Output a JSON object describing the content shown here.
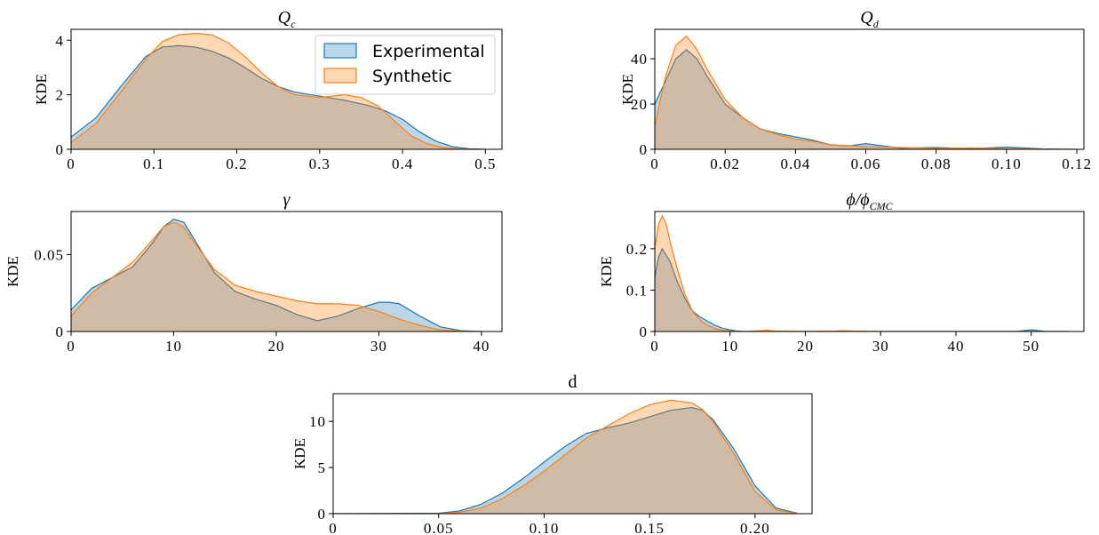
{
  "chart_data": [
    {
      "type": "area",
      "title_main": "Q",
      "title_sub": "c",
      "ylabel": "KDE",
      "xlim": [
        0,
        0.52
      ],
      "ylim": [
        0,
        4.4
      ],
      "xticks": [
        0,
        0.1,
        0.2,
        0.3,
        0.4,
        0.5
      ],
      "xtick_labels": [
        "0",
        "0.1",
        "0.2",
        "0.3",
        "0.4",
        "0.5"
      ],
      "yticks": [
        0,
        2,
        4
      ],
      "ytick_labels": [
        "0",
        "2",
        "4"
      ],
      "legend": {
        "position": "top-right",
        "entries": [
          "Experimental",
          "Synthetic"
        ]
      },
      "series": [
        {
          "name": "Experimental",
          "x": [
            0,
            0.03,
            0.06,
            0.09,
            0.11,
            0.13,
            0.15,
            0.17,
            0.19,
            0.21,
            0.23,
            0.25,
            0.27,
            0.3,
            0.33,
            0.36,
            0.38,
            0.4,
            0.42,
            0.44,
            0.46,
            0.48,
            0.5
          ],
          "values": [
            0.45,
            1.15,
            2.3,
            3.4,
            3.75,
            3.8,
            3.75,
            3.6,
            3.35,
            3.0,
            2.6,
            2.3,
            2.1,
            1.95,
            1.8,
            1.6,
            1.4,
            1.1,
            0.65,
            0.3,
            0.1,
            0.02,
            0
          ]
        },
        {
          "name": "Synthetic",
          "x": [
            0,
            0.03,
            0.06,
            0.09,
            0.11,
            0.13,
            0.15,
            0.17,
            0.19,
            0.21,
            0.23,
            0.25,
            0.27,
            0.3,
            0.33,
            0.35,
            0.37,
            0.39,
            0.41,
            0.43,
            0.45,
            0.47,
            0.49
          ],
          "values": [
            0.25,
            0.95,
            2.1,
            3.3,
            3.95,
            4.2,
            4.25,
            4.2,
            3.9,
            3.4,
            2.8,
            2.3,
            2.0,
            1.9,
            2.0,
            1.9,
            1.6,
            1.05,
            0.5,
            0.2,
            0.06,
            0.01,
            0
          ]
        }
      ]
    },
    {
      "type": "area",
      "title_main": "Q",
      "title_sub": "d",
      "ylabel": "KDE",
      "xlim": [
        0,
        0.122
      ],
      "ylim": [
        0,
        53
      ],
      "xticks": [
        0,
        0.02,
        0.04,
        0.06,
        0.08,
        0.1,
        0.12
      ],
      "xtick_labels": [
        "0",
        "0.02",
        "0.04",
        "0.06",
        "0.08",
        "0.10",
        "0.12"
      ],
      "yticks": [
        0,
        20,
        40
      ],
      "ytick_labels": [
        "0",
        "20",
        "40"
      ],
      "series": [
        {
          "name": "Experimental",
          "x": [
            0,
            0.003,
            0.006,
            0.009,
            0.012,
            0.015,
            0.02,
            0.025,
            0.03,
            0.035,
            0.04,
            0.045,
            0.05,
            0.055,
            0.06,
            0.065,
            0.07,
            0.08,
            0.09,
            0.1,
            0.105,
            0.11,
            0.115,
            0.12
          ],
          "values": [
            20,
            30,
            40,
            44,
            40,
            32,
            20,
            14,
            9,
            7,
            5.5,
            4,
            2,
            1.5,
            2.5,
            1.5,
            0.5,
            0.8,
            0.3,
            1.0,
            0.6,
            0.2,
            0.05,
            0
          ]
        },
        {
          "name": "Synthetic",
          "x": [
            0,
            0.003,
            0.006,
            0.009,
            0.012,
            0.015,
            0.02,
            0.025,
            0.03,
            0.035,
            0.04,
            0.045,
            0.05,
            0.06,
            0.07,
            0.08,
            0.09,
            0.1,
            0.11,
            0.12
          ],
          "values": [
            10,
            32,
            46,
            50,
            44,
            35,
            22,
            14,
            9,
            6.5,
            4.5,
            3.5,
            2,
            1.2,
            0.8,
            0.4,
            0.6,
            0.3,
            0.1,
            0
          ]
        }
      ]
    },
    {
      "type": "area",
      "title_main": "γ",
      "title_sub": "",
      "ylabel": "KDE",
      "xlim": [
        0,
        42
      ],
      "ylim": [
        0,
        0.078
      ],
      "xticks": [
        0,
        10,
        20,
        30,
        40
      ],
      "xtick_labels": [
        "0",
        "10",
        "20",
        "30",
        "40"
      ],
      "yticks": [
        0,
        0.05
      ],
      "ytick_labels": [
        "0",
        "0.05"
      ],
      "series": [
        {
          "name": "Experimental",
          "x": [
            0,
            2,
            4,
            6,
            8,
            9,
            10,
            11,
            12,
            14,
            16,
            18,
            20,
            22,
            24,
            26,
            28,
            30,
            31,
            32,
            34,
            36,
            38,
            40
          ],
          "values": [
            0.014,
            0.028,
            0.035,
            0.042,
            0.058,
            0.068,
            0.073,
            0.071,
            0.06,
            0.038,
            0.026,
            0.021,
            0.017,
            0.011,
            0.007,
            0.01,
            0.015,
            0.019,
            0.019,
            0.018,
            0.01,
            0.003,
            0.0005,
            0
          ]
        },
        {
          "name": "Synthetic",
          "x": [
            0,
            2,
            4,
            6,
            8,
            9,
            10,
            11,
            12,
            14,
            16,
            18,
            20,
            22,
            24,
            26,
            28,
            30,
            32,
            34,
            36,
            38,
            40
          ],
          "values": [
            0.01,
            0.025,
            0.035,
            0.045,
            0.06,
            0.068,
            0.071,
            0.068,
            0.058,
            0.04,
            0.03,
            0.026,
            0.023,
            0.02,
            0.018,
            0.018,
            0.017,
            0.013,
            0.008,
            0.004,
            0.001,
            0.0002,
            0
          ]
        }
      ]
    },
    {
      "type": "area",
      "title_main": "ϕ/ϕ",
      "title_sub": "CMC",
      "ylabel": "KDE",
      "xlim": [
        0,
        57
      ],
      "ylim": [
        0,
        0.29
      ],
      "xticks": [
        0,
        10,
        20,
        30,
        40,
        50
      ],
      "xtick_labels": [
        "0",
        "10",
        "20",
        "30",
        "40",
        "50"
      ],
      "yticks": [
        0,
        0.1,
        0.2
      ],
      "ytick_labels": [
        "0",
        "0.1",
        "0.2"
      ],
      "series": [
        {
          "name": "Experimental",
          "x": [
            0,
            0.5,
            1,
            2,
            3,
            4,
            5,
            6,
            7,
            8,
            9,
            10,
            11,
            12,
            15,
            20,
            25,
            30,
            40,
            48,
            50,
            52,
            55
          ],
          "values": [
            0.13,
            0.18,
            0.2,
            0.17,
            0.12,
            0.08,
            0.05,
            0.035,
            0.025,
            0.015,
            0.008,
            0.004,
            0.001,
            0,
            0,
            0,
            0,
            0,
            0,
            0,
            0.004,
            0,
            0
          ]
        },
        {
          "name": "Synthetic",
          "x": [
            0,
            0.5,
            1,
            1.5,
            2,
            3,
            4,
            5,
            6,
            7,
            8,
            9,
            10,
            12,
            14,
            15,
            16,
            20,
            24,
            25,
            26,
            30,
            55
          ],
          "values": [
            0.2,
            0.26,
            0.28,
            0.26,
            0.22,
            0.15,
            0.09,
            0.05,
            0.028,
            0.015,
            0.007,
            0.003,
            0.001,
            0,
            0.002,
            0.003,
            0.001,
            0,
            0.001,
            0.002,
            0.001,
            0,
            0
          ]
        }
      ]
    },
    {
      "type": "area",
      "title_main": "d",
      "title_sub": "",
      "ylabel": "KDE",
      "xlim": [
        0,
        0.227
      ],
      "ylim": [
        0,
        13
      ],
      "xticks": [
        0,
        0.05,
        0.1,
        0.15,
        0.2
      ],
      "xtick_labels": [
        "0",
        "0.05",
        "0.10",
        "0.15",
        "0.20"
      ],
      "yticks": [
        0,
        5,
        10
      ],
      "ytick_labels": [
        "0",
        "5",
        "10"
      ],
      "series": [
        {
          "name": "Experimental",
          "x": [
            0,
            0.05,
            0.06,
            0.07,
            0.08,
            0.09,
            0.1,
            0.11,
            0.12,
            0.13,
            0.14,
            0.15,
            0.16,
            0.17,
            0.175,
            0.18,
            0.19,
            0.2,
            0.21,
            0.22
          ],
          "values": [
            0,
            0.05,
            0.3,
            1.0,
            2.2,
            3.8,
            5.6,
            7.3,
            8.7,
            9.3,
            9.8,
            10.5,
            11.2,
            11.5,
            11.2,
            10.2,
            7.0,
            3.0,
            0.6,
            0.05
          ]
        },
        {
          "name": "Synthetic",
          "x": [
            0,
            0.05,
            0.06,
            0.07,
            0.08,
            0.09,
            0.1,
            0.11,
            0.12,
            0.13,
            0.14,
            0.15,
            0.16,
            0.17,
            0.175,
            0.18,
            0.19,
            0.2,
            0.21,
            0.22
          ],
          "values": [
            0,
            0.02,
            0.15,
            0.6,
            1.6,
            3.0,
            4.6,
            6.4,
            8.2,
            9.5,
            10.8,
            11.8,
            12.3,
            12.0,
            11.3,
            10.0,
            6.5,
            2.4,
            0.4,
            0.02
          ]
        }
      ]
    }
  ],
  "colors": {
    "experimental_fill": "#1f77b4",
    "experimental_line": "#1f77b4",
    "synthetic_fill": "#ff7f0e",
    "synthetic_line": "#ff7f0e"
  }
}
